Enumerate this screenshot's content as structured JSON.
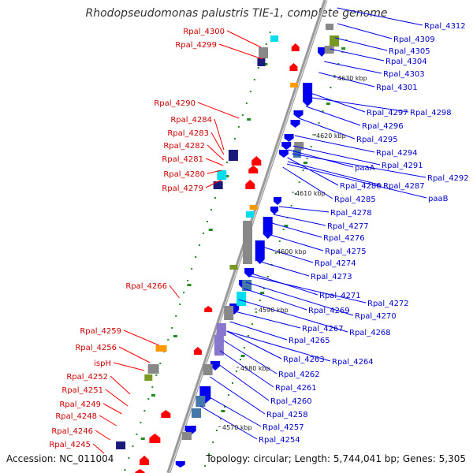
{
  "title": "Rhodopseudomonas palustris TIE-1, complete genome",
  "accession": "Accession: NC_011004",
  "topology": "Topology: circular; Length: 5,744,041 bp; Genes: 5,305",
  "colors": {
    "forward_gene": "#ff0000",
    "reverse_gene": "#0000ee",
    "left_label": "#cc0000",
    "right_label": "#0000cc",
    "backbone": "#999999",
    "gc_tick": "#228b22",
    "cog_cyan": "#00ddee",
    "cog_orange": "#ff9900",
    "cog_olive": "#779922",
    "cog_gray": "#888888",
    "cog_navy": "#1a1a7a",
    "cog_purple": "#8877cc",
    "cog_steel": "#4477aa"
  },
  "scale_labels": [
    "4570 kbp",
    "4580 kbp",
    "4590 kbp",
    "4600 kbp",
    "4610 kbp",
    "4620 kbp",
    "4630 kbp"
  ],
  "left_genes": [
    "Rpal_4300",
    "Rpal_4299",
    "Rpal_4290",
    "Rpal_4284",
    "Rpal_4283",
    "Rpal_4282",
    "Rpal_4281",
    "Rpal_4280",
    "Rpal_4279",
    "Rpal_4266",
    "Rpal_4259",
    "Rpal_4256",
    "ispH",
    "Rpal_4252",
    "Rpal_4251",
    "Rpal_4249",
    "Rpal_4248",
    "Rpal_4246",
    "Rpal_4245"
  ],
  "right_genes": [
    "Rpal_4312",
    "Rpal_4309",
    "Rpal_4305",
    "Rpal_4304",
    "Rpal_4303",
    "Rpal_4301",
    "Rpal_4297",
    "Rpal_4298",
    "Rpal_4296",
    "Rpal_4295",
    "Rpal_4294",
    "paaA",
    "Rpal_4291",
    "Rpal_4292",
    "Rpal_4286",
    "Rpal_4287",
    "paaB",
    "Rpal_4285",
    "Rpal_4278",
    "Rpal_4277",
    "Rpal_4276",
    "Rpal_4275",
    "Rpal_4274",
    "Rpal_4273",
    "Rpal_4271",
    "Rpal_4272",
    "Rpal_4270",
    "Rpal_4269",
    "Rpal_4268",
    "Rpal_4267",
    "Rpal_4265",
    "Rpal_4264",
    "Rpal_4263",
    "Rpal_4262",
    "Rpal_4261",
    "Rpal_4260",
    "Rpal_4258",
    "Rpal_4257",
    "Rpal_4254"
  ]
}
